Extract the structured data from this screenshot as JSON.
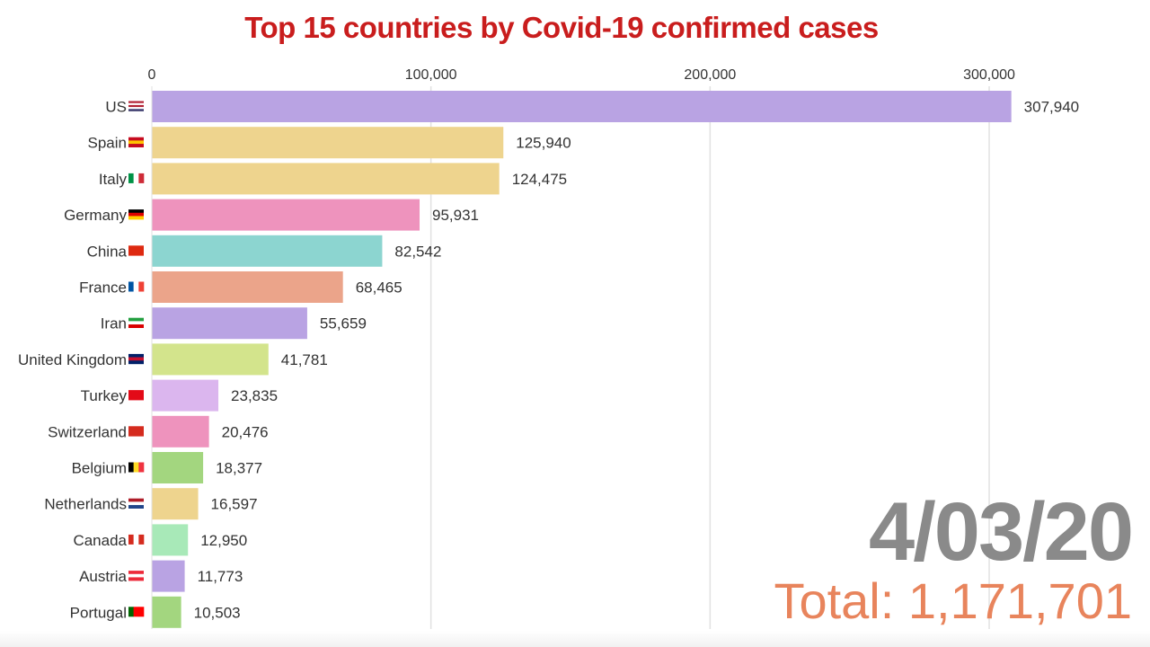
{
  "chart_data": {
    "type": "bar",
    "orientation": "horizontal",
    "title": "Top 15 countries by Covid-19 confirmed cases",
    "categories": [
      "US",
      "Spain",
      "Italy",
      "Germany",
      "China",
      "France",
      "Iran",
      "United Kingdom",
      "Turkey",
      "Switzerland",
      "Belgium",
      "Netherlands",
      "Canada",
      "Austria",
      "Portugal"
    ],
    "values": [
      307940,
      125940,
      124475,
      95931,
      82542,
      68465,
      55659,
      41781,
      23835,
      20476,
      18377,
      16597,
      12950,
      11773,
      10503
    ],
    "value_labels": [
      "307,940",
      "125,940",
      "124,475",
      "95,931",
      "82,542",
      "68,465",
      "55,659",
      "41,781",
      "23,835",
      "20,476",
      "18,377",
      "16,597",
      "12,950",
      "11,773",
      "10,503"
    ],
    "colors": [
      "#b9a3e3",
      "#eed48e",
      "#eed48e",
      "#ee93bd",
      "#8cd5d0",
      "#eba48a",
      "#b9a3e3",
      "#d3e48c",
      "#dbb6ee",
      "#ee93bd",
      "#a3d67f",
      "#eed48e",
      "#a8e9b8",
      "#b9a3e3",
      "#a3d67f"
    ],
    "flags": [
      {
        "dir": "h",
        "c": [
          "#b22234",
          "#fff",
          "#b22234",
          "#fff",
          "#3c3b6e"
        ]
      },
      {
        "dir": "h",
        "c": [
          "#c60b1e",
          "#ffc400",
          "#c60b1e"
        ]
      },
      {
        "dir": "v",
        "c": [
          "#009246",
          "#fff",
          "#ce2b37"
        ]
      },
      {
        "dir": "h",
        "c": [
          "#000",
          "#dd0000",
          "#ffce00"
        ]
      },
      {
        "dir": "h",
        "c": [
          "#de2910"
        ]
      },
      {
        "dir": "v",
        "c": [
          "#0055a4",
          "#fff",
          "#ef4135"
        ]
      },
      {
        "dir": "h",
        "c": [
          "#239f40",
          "#fff",
          "#da0000"
        ]
      },
      {
        "dir": "h",
        "c": [
          "#012169",
          "#c8102e",
          "#012169"
        ]
      },
      {
        "dir": "h",
        "c": [
          "#e30a17"
        ]
      },
      {
        "dir": "h",
        "c": [
          "#d52b1e"
        ]
      },
      {
        "dir": "v",
        "c": [
          "#000",
          "#fdda24",
          "#ef3340"
        ]
      },
      {
        "dir": "h",
        "c": [
          "#ae1c28",
          "#fff",
          "#21468b"
        ]
      },
      {
        "dir": "v",
        "c": [
          "#d52b1e",
          "#fff",
          "#d52b1e"
        ]
      },
      {
        "dir": "h",
        "c": [
          "#ed2939",
          "#fff",
          "#ed2939"
        ]
      },
      {
        "dir": "v",
        "c": [
          "#006600",
          "#ff0000",
          "#ff0000"
        ]
      }
    ],
    "x_ticks": [
      0,
      100000,
      200000,
      300000
    ],
    "x_tick_labels": [
      "0",
      "100,000",
      "200,000",
      "300,000"
    ],
    "xlim": [
      0,
      340000
    ],
    "grid": true,
    "xlabel": "",
    "ylabel": ""
  },
  "date": "4/03/20",
  "total": "Total: 1,171,701"
}
